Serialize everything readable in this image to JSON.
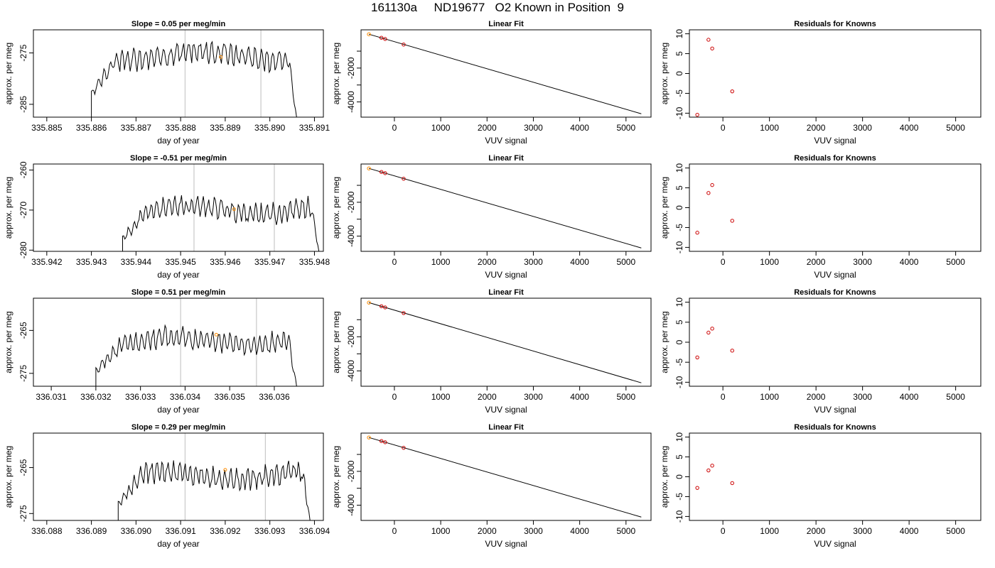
{
  "title": "161130a     ND19677   O2 Known in Position  9",
  "colors": {
    "known": "#ff8c00",
    "resid": "#cc0000",
    "line": "#000000",
    "vline": "#c8c8c8"
  },
  "chart_data": [
    {
      "type": "line",
      "row": 0,
      "title": "Slope =  0.05  per meg/min",
      "xlabel": "day of year",
      "ylabel": "approx. per meg",
      "xlim": [
        335.8847,
        335.8912
      ],
      "ylim": [
        -287.5,
        -270.5
      ],
      "xticks": [
        335.885,
        335.886,
        335.887,
        335.888,
        335.889,
        335.89,
        335.891
      ],
      "xticklabels": [
        "335.885",
        "335.886",
        "335.887",
        "335.888",
        "335.889",
        "335.890",
        "335.891"
      ],
      "yticks": [
        -285,
        -275
      ],
      "yticklabels": [
        "-285",
        "-275"
      ],
      "vlines": [
        335.8881,
        335.8898
      ],
      "series": [
        {
          "x_start": 335.886,
          "x_end": 335.8906,
          "base": -275.5,
          "amp": 1.8,
          "seed": 3,
          "drop_start": -287.5,
          "drop_end": -287.5
        }
      ],
      "marker": {
        "x": 335.8889,
        "y": -275.8
      }
    },
    {
      "type": "scatter",
      "row": 0,
      "title": "Linear Fit",
      "xlabel": "VUV signal",
      "ylabel": "approx. per meg",
      "xlim": [
        -720,
        5540
      ],
      "ylim": [
        -4900,
        260
      ],
      "xticks": [
        0,
        1000,
        2000,
        3000,
        4000,
        5000
      ],
      "xticklabels": [
        "0",
        "1000",
        "2000",
        "3000",
        "4000",
        "5000"
      ],
      "yticks": [
        -4000,
        -3000,
        -2000,
        -1000
      ],
      "yticklabels": [
        "-4000",
        "",
        "-2000",
        ""
      ],
      "fit": {
        "x": [
          -550,
          5330
        ],
        "y": [
          0,
          -4700
        ]
      },
      "points": [
        {
          "x": -550,
          "y": 0,
          "known": true
        },
        {
          "x": -280,
          "y": -210
        },
        {
          "x": -200,
          "y": -280
        },
        {
          "x": 200,
          "y": -610
        }
      ]
    },
    {
      "type": "scatter",
      "row": 0,
      "title": "Residuals for Knowns",
      "xlabel": "VUV signal",
      "ylabel": "approx. per meg",
      "xlim": [
        -720,
        5540
      ],
      "ylim": [
        -11,
        11
      ],
      "xticks": [
        0,
        1000,
        2000,
        3000,
        4000,
        5000
      ],
      "xticklabels": [
        "0",
        "1000",
        "2000",
        "3000",
        "4000",
        "5000"
      ],
      "yticks": [
        -10,
        -5,
        0,
        5,
        10
      ],
      "yticklabels": [
        "-10",
        "-5",
        "0",
        "5",
        "10"
      ],
      "points": [
        {
          "x": -550,
          "y": -10.4
        },
        {
          "x": -310,
          "y": 8.5
        },
        {
          "x": -230,
          "y": 6.3
        },
        {
          "x": 200,
          "y": -4.5
        }
      ]
    },
    {
      "type": "line",
      "row": 1,
      "title": "Slope =  -0.51  per meg/min",
      "xlabel": "day of year",
      "ylabel": "approx. per meg",
      "xlim": [
        335.9417,
        335.9482
      ],
      "ylim": [
        -280.3,
        -258.5
      ],
      "xticks": [
        335.942,
        335.943,
        335.944,
        335.945,
        335.946,
        335.947,
        335.948
      ],
      "xticklabels": [
        "335.942",
        "335.943",
        "335.944",
        "335.945",
        "335.946",
        "335.947",
        "335.948"
      ],
      "yticks": [
        -280,
        -270,
        -260
      ],
      "yticklabels": [
        "-280",
        "-270",
        "-260"
      ],
      "vlines": [
        335.9453,
        335.9471
      ],
      "series": [
        {
          "x_start": 335.9437,
          "x_end": 335.9481,
          "base": -270.0,
          "amp": 2.1,
          "seed": 11,
          "drop_start": -280.3,
          "drop_end": -280.3
        }
      ],
      "marker": {
        "x": 335.9462,
        "y": -269.8
      }
    },
    {
      "type": "scatter",
      "row": 1,
      "title": "Linear Fit",
      "xlabel": "VUV signal",
      "ylabel": "approx. per meg",
      "xlim": [
        -720,
        5540
      ],
      "ylim": [
        -4900,
        260
      ],
      "xticks": [
        0,
        1000,
        2000,
        3000,
        4000,
        5000
      ],
      "xticklabels": [
        "0",
        "1000",
        "2000",
        "3000",
        "4000",
        "5000"
      ],
      "yticks": [
        -4000,
        -3000,
        -2000,
        -1000
      ],
      "yticklabels": [
        "-4000",
        "",
        "-2000",
        ""
      ],
      "fit": {
        "x": [
          -550,
          5330
        ],
        "y": [
          0,
          -4700
        ]
      },
      "points": [
        {
          "x": -550,
          "y": 0,
          "known": true
        },
        {
          "x": -280,
          "y": -210
        },
        {
          "x": -200,
          "y": -280
        },
        {
          "x": 200,
          "y": -610
        }
      ]
    },
    {
      "type": "scatter",
      "row": 1,
      "title": "Residuals for Knowns",
      "xlabel": "VUV signal",
      "ylabel": "approx. per meg",
      "xlim": [
        -720,
        5540
      ],
      "ylim": [
        -11,
        11
      ],
      "xticks": [
        0,
        1000,
        2000,
        3000,
        4000,
        5000
      ],
      "xticklabels": [
        "0",
        "1000",
        "2000",
        "3000",
        "4000",
        "5000"
      ],
      "yticks": [
        -10,
        -5,
        0,
        5,
        10
      ],
      "yticklabels": [
        "-10",
        "-5",
        "0",
        "5",
        "10"
      ],
      "points": [
        {
          "x": -550,
          "y": -6.3
        },
        {
          "x": -310,
          "y": 3.7
        },
        {
          "x": -230,
          "y": 5.7
        },
        {
          "x": 200,
          "y": -3.3
        }
      ]
    },
    {
      "type": "line",
      "row": 2,
      "title": "Slope =  0.51  per meg/min",
      "xlabel": "day of year",
      "ylabel": "approx. per meg",
      "xlim": [
        336.0306,
        336.0371
      ],
      "ylim": [
        -278,
        -257.5
      ],
      "xticks": [
        336.031,
        336.032,
        336.033,
        336.034,
        336.035,
        336.036
      ],
      "xticklabels": [
        "336.031",
        "336.032",
        "336.033",
        "336.034",
        "336.035",
        "336.036"
      ],
      "yticks": [
        -275,
        -265
      ],
      "yticklabels": [
        "-275",
        "-265"
      ],
      "vlines": [
        336.0339,
        336.0356
      ],
      "series": [
        {
          "x_start": 336.032,
          "x_end": 336.0365,
          "base": -267.5,
          "amp": 2.1,
          "seed": 23,
          "drop_start": -278,
          "drop_end": -278
        }
      ],
      "marker": {
        "x": 336.0347,
        "y": -266.0
      }
    },
    {
      "type": "scatter",
      "row": 2,
      "title": "Linear Fit",
      "xlabel": "VUV signal",
      "ylabel": "approx. per meg",
      "xlim": [
        -720,
        5540
      ],
      "ylim": [
        -4900,
        260
      ],
      "xticks": [
        0,
        1000,
        2000,
        3000,
        4000,
        5000
      ],
      "xticklabels": [
        "0",
        "1000",
        "2000",
        "3000",
        "4000",
        "5000"
      ],
      "yticks": [
        -4000,
        -3000,
        -2000,
        -1000
      ],
      "yticklabels": [
        "-4000",
        "",
        "-2000",
        ""
      ],
      "fit": {
        "x": [
          -550,
          5330
        ],
        "y": [
          0,
          -4700
        ]
      },
      "points": [
        {
          "x": -550,
          "y": 0,
          "known": true
        },
        {
          "x": -280,
          "y": -210
        },
        {
          "x": -200,
          "y": -280
        },
        {
          "x": 200,
          "y": -610
        }
      ]
    },
    {
      "type": "scatter",
      "row": 2,
      "title": "Residuals for Knowns",
      "xlabel": "VUV signal",
      "ylabel": "approx. per meg",
      "xlim": [
        -720,
        5540
      ],
      "ylim": [
        -11,
        11
      ],
      "xticks": [
        0,
        1000,
        2000,
        3000,
        4000,
        5000
      ],
      "xticklabels": [
        "0",
        "1000",
        "2000",
        "3000",
        "4000",
        "5000"
      ],
      "yticks": [
        -10,
        -5,
        0,
        5,
        10
      ],
      "yticklabels": [
        "-10",
        "-5",
        "0",
        "5",
        "10"
      ],
      "points": [
        {
          "x": -550,
          "y": -3.8
        },
        {
          "x": -310,
          "y": 2.4
        },
        {
          "x": -230,
          "y": 3.4
        },
        {
          "x": 200,
          "y": -2.1
        }
      ]
    },
    {
      "type": "line",
      "row": 3,
      "title": "Slope =  0.29  per meg/min",
      "xlabel": "day of year",
      "ylabel": "approx. per meg",
      "xlim": [
        336.0877,
        336.0942
      ],
      "ylim": [
        -276.5,
        -257.5
      ],
      "xticks": [
        336.088,
        336.089,
        336.09,
        336.091,
        336.092,
        336.093,
        336.094
      ],
      "xticklabels": [
        "336.088",
        "336.089",
        "336.090",
        "336.091",
        "336.092",
        "336.093",
        "336.094"
      ],
      "yticks": [
        -275,
        -265
      ],
      "yticklabels": [
        "-275",
        "-265"
      ],
      "vlines": [
        336.0911,
        336.0929
      ],
      "series": [
        {
          "x_start": 336.0896,
          "x_end": 336.0939,
          "base": -266.8,
          "amp": 2.0,
          "seed": 37,
          "drop_start": -276.5,
          "drop_end": -276.5
        }
      ],
      "marker": {
        "x": 336.092,
        "y": -265.5
      }
    },
    {
      "type": "scatter",
      "row": 3,
      "title": "Linear Fit",
      "xlabel": "VUV signal",
      "ylabel": "approx. per meg",
      "xlim": [
        -720,
        5540
      ],
      "ylim": [
        -4900,
        260
      ],
      "xticks": [
        0,
        1000,
        2000,
        3000,
        4000,
        5000
      ],
      "xticklabels": [
        "0",
        "1000",
        "2000",
        "3000",
        "4000",
        "5000"
      ],
      "yticks": [
        -4000,
        -3000,
        -2000,
        -1000
      ],
      "yticklabels": [
        "-4000",
        "",
        "-2000",
        ""
      ],
      "fit": {
        "x": [
          -550,
          5330
        ],
        "y": [
          0,
          -4700
        ]
      },
      "points": [
        {
          "x": -550,
          "y": 0,
          "known": true
        },
        {
          "x": -280,
          "y": -210
        },
        {
          "x": -200,
          "y": -280
        },
        {
          "x": 200,
          "y": -610
        }
      ]
    },
    {
      "type": "scatter",
      "row": 3,
      "title": "Residuals for Knowns",
      "xlabel": "VUV signal",
      "ylabel": "approx. per meg",
      "xlim": [
        -720,
        5540
      ],
      "ylim": [
        -11,
        11
      ],
      "xticks": [
        0,
        1000,
        2000,
        3000,
        4000,
        5000
      ],
      "xticklabels": [
        "0",
        "1000",
        "2000",
        "3000",
        "4000",
        "5000"
      ],
      "yticks": [
        -10,
        -5,
        0,
        5,
        10
      ],
      "yticklabels": [
        "-10",
        "-5",
        "0",
        "5",
        "10"
      ],
      "points": [
        {
          "x": -550,
          "y": -2.8
        },
        {
          "x": -310,
          "y": 1.6
        },
        {
          "x": -230,
          "y": 2.8
        },
        {
          "x": 200,
          "y": -1.6
        }
      ]
    }
  ]
}
